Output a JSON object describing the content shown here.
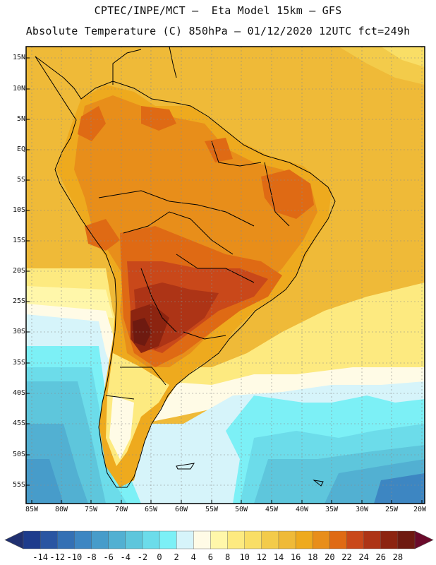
{
  "header": {
    "line1": "CPTEC/INPE/MCT –  Eta Model 15km – GFS",
    "line2": "Absolute Temperature (C) 850hPa – 01/12/2020 12UTC fct=249h"
  },
  "map": {
    "lat_labels": [
      "15N",
      "10N",
      "5N",
      "EQ",
      "5S",
      "10S",
      "15S",
      "20S",
      "25S",
      "30S",
      "35S",
      "40S",
      "45S",
      "50S",
      "55S"
    ],
    "lon_labels": [
      "85W",
      "80W",
      "75W",
      "70W",
      "65W",
      "60W",
      "55W",
      "50W",
      "45W",
      "40W",
      "35W",
      "30W",
      "25W",
      "20W"
    ]
  },
  "colorbar": {
    "labels": [
      "-14",
      "-12",
      "-10",
      "-8",
      "-6",
      "-4",
      "-2",
      "0",
      "2",
      "4",
      "6",
      "8",
      "10",
      "12",
      "14",
      "16",
      "18",
      "20",
      "22",
      "24",
      "26",
      "28"
    ],
    "colors": [
      "#1e3c8c",
      "#2a55a2",
      "#3470b4",
      "#3d86c2",
      "#479cca",
      "#52b0d2",
      "#5ec6dc",
      "#6cdcea",
      "#7cf0f6",
      "#d6f4fa",
      "#fffbe6",
      "#fff7aa",
      "#fdea80",
      "#f9de66",
      "#f3cb4a",
      "#efba38",
      "#eeaa1e",
      "#e88e1a",
      "#df6a14",
      "#c9481a",
      "#ad3416",
      "#8c2410",
      "#6e1a10"
    ],
    "under_color": "#203070",
    "over_color": "#6a0a2a"
  }
}
